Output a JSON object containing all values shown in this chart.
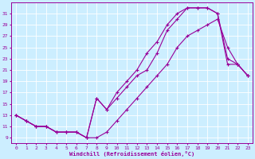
{
  "xlabel": "Windchill (Refroidissement éolien,°C)",
  "bg_color": "#cceeff",
  "line_color": "#990099",
  "grid_color": "#ffffff",
  "xlim": [
    -0.5,
    23.5
  ],
  "ylim": [
    8,
    33
  ],
  "xticks": [
    0,
    1,
    2,
    3,
    4,
    5,
    6,
    7,
    8,
    9,
    10,
    11,
    12,
    13,
    14,
    15,
    16,
    17,
    18,
    19,
    20,
    21,
    22,
    23
  ],
  "yticks": [
    9,
    11,
    13,
    15,
    17,
    19,
    21,
    23,
    25,
    27,
    29,
    31
  ],
  "line1_x": [
    0,
    1,
    2,
    3,
    4,
    5,
    6,
    7,
    8,
    9,
    10,
    11,
    12,
    13,
    14,
    15,
    16,
    17,
    18,
    19,
    20,
    21,
    22,
    23
  ],
  "line1_y": [
    13,
    12,
    11,
    11,
    10,
    10,
    10,
    9,
    9,
    10,
    12,
    14,
    16,
    18,
    20,
    22,
    25,
    27,
    28,
    29,
    30,
    25,
    22,
    20
  ],
  "line2_x": [
    0,
    1,
    2,
    3,
    4,
    5,
    6,
    7,
    8,
    9,
    10,
    11,
    12,
    13,
    14,
    15,
    16,
    17,
    18,
    19,
    20,
    21,
    22,
    23
  ],
  "line2_y": [
    13,
    12,
    11,
    11,
    10,
    10,
    10,
    9,
    16,
    14,
    16,
    18,
    20,
    21,
    24,
    28,
    30,
    32,
    32,
    32,
    31,
    23,
    22,
    20
  ],
  "line3_x": [
    0,
    1,
    2,
    3,
    4,
    5,
    6,
    7,
    8,
    9,
    10,
    11,
    12,
    13,
    14,
    15,
    16,
    17,
    18,
    19,
    20,
    21,
    22,
    23
  ],
  "line3_y": [
    13,
    12,
    11,
    11,
    10,
    10,
    10,
    9,
    16,
    14,
    17,
    19,
    21,
    24,
    26,
    29,
    31,
    32,
    32,
    32,
    31,
    22,
    22,
    20
  ]
}
